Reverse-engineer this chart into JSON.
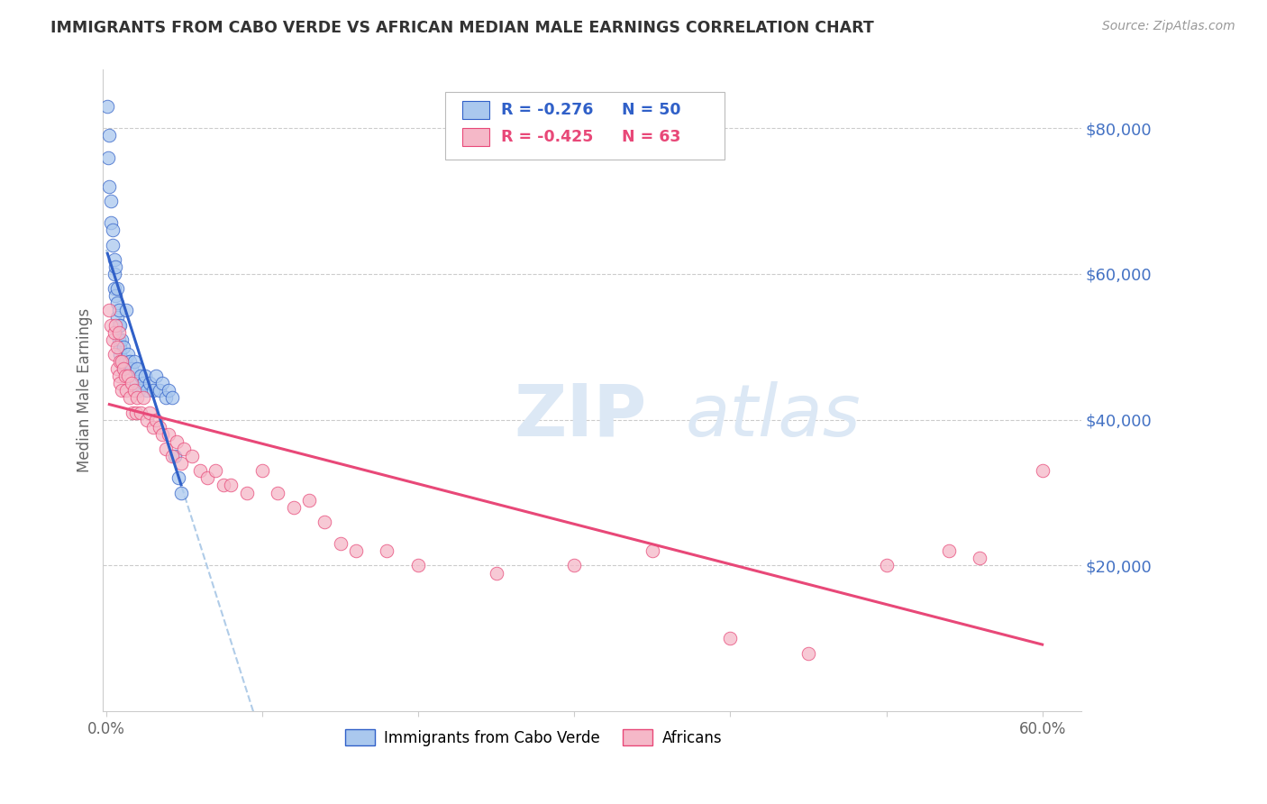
{
  "title": "IMMIGRANTS FROM CABO VERDE VS AFRICAN MEDIAN MALE EARNINGS CORRELATION CHART",
  "source": "Source: ZipAtlas.com",
  "ylabel": "Median Male Earnings",
  "ytick_labels": [
    "$80,000",
    "$60,000",
    "$40,000",
    "$20,000"
  ],
  "ytick_values": [
    80000,
    60000,
    40000,
    20000
  ],
  "ymin": 0,
  "ymax": 88000,
  "xmin": -0.002,
  "xmax": 0.625,
  "blue_R": -0.276,
  "blue_N": 50,
  "pink_R": -0.425,
  "pink_N": 63,
  "legend_label_blue": "Immigrants from Cabo Verde",
  "legend_label_pink": "Africans",
  "scatter_color_blue": "#aac8ee",
  "scatter_color_pink": "#f5b8c8",
  "line_color_blue": "#3060c8",
  "line_color_pink": "#e84878",
  "line_color_dashed": "#b0cce8",
  "title_color": "#333333",
  "source_color": "#999999",
  "axis_label_color": "#666666",
  "tick_color_right": "#4472c4",
  "grid_color": "#cccccc",
  "watermark_color": "#dce8f5",
  "blue_x": [
    0.0008,
    0.0015,
    0.002,
    0.002,
    0.003,
    0.003,
    0.004,
    0.004,
    0.005,
    0.005,
    0.005,
    0.006,
    0.006,
    0.007,
    0.007,
    0.007,
    0.008,
    0.008,
    0.008,
    0.009,
    0.009,
    0.009,
    0.01,
    0.01,
    0.011,
    0.011,
    0.012,
    0.013,
    0.014,
    0.015,
    0.016,
    0.018,
    0.019,
    0.02,
    0.021,
    0.022,
    0.024,
    0.025,
    0.026,
    0.028,
    0.03,
    0.032,
    0.034,
    0.036,
    0.038,
    0.04,
    0.042,
    0.044,
    0.046,
    0.048
  ],
  "blue_y": [
    83000,
    76000,
    79000,
    72000,
    70000,
    67000,
    66000,
    64000,
    62000,
    60000,
    58000,
    61000,
    57000,
    58000,
    56000,
    54000,
    55000,
    53000,
    51000,
    53000,
    50000,
    49000,
    51000,
    48000,
    50000,
    47000,
    48000,
    55000,
    49000,
    48000,
    47000,
    48000,
    45000,
    47000,
    44000,
    46000,
    45000,
    46000,
    44000,
    45000,
    44000,
    46000,
    44000,
    45000,
    43000,
    44000,
    43000,
    35000,
    32000,
    30000
  ],
  "pink_x": [
    0.002,
    0.003,
    0.004,
    0.005,
    0.005,
    0.006,
    0.007,
    0.007,
    0.008,
    0.008,
    0.009,
    0.009,
    0.01,
    0.01,
    0.011,
    0.012,
    0.013,
    0.014,
    0.015,
    0.016,
    0.017,
    0.018,
    0.019,
    0.02,
    0.022,
    0.024,
    0.026,
    0.028,
    0.03,
    0.032,
    0.034,
    0.036,
    0.038,
    0.04,
    0.042,
    0.045,
    0.048,
    0.05,
    0.055,
    0.06,
    0.065,
    0.07,
    0.075,
    0.08,
    0.09,
    0.1,
    0.11,
    0.12,
    0.13,
    0.14,
    0.15,
    0.16,
    0.18,
    0.2,
    0.25,
    0.3,
    0.35,
    0.4,
    0.45,
    0.5,
    0.54,
    0.56,
    0.6
  ],
  "pink_y": [
    55000,
    53000,
    51000,
    52000,
    49000,
    53000,
    50000,
    47000,
    52000,
    46000,
    48000,
    45000,
    48000,
    44000,
    47000,
    46000,
    44000,
    46000,
    43000,
    45000,
    41000,
    44000,
    41000,
    43000,
    41000,
    43000,
    40000,
    41000,
    39000,
    40000,
    39000,
    38000,
    36000,
    38000,
    35000,
    37000,
    34000,
    36000,
    35000,
    33000,
    32000,
    33000,
    31000,
    31000,
    30000,
    33000,
    30000,
    28000,
    29000,
    26000,
    23000,
    22000,
    22000,
    20000,
    19000,
    20000,
    22000,
    10000,
    8000,
    20000,
    22000,
    21000,
    33000
  ],
  "xtick_positions": [
    0.0,
    0.1,
    0.2,
    0.3,
    0.4,
    0.5,
    0.6
  ],
  "xtick_show": [
    0,
    6
  ],
  "xtick_labels_all": [
    "0.0%",
    "",
    "",
    "",
    "",
    "",
    "60.0%"
  ]
}
